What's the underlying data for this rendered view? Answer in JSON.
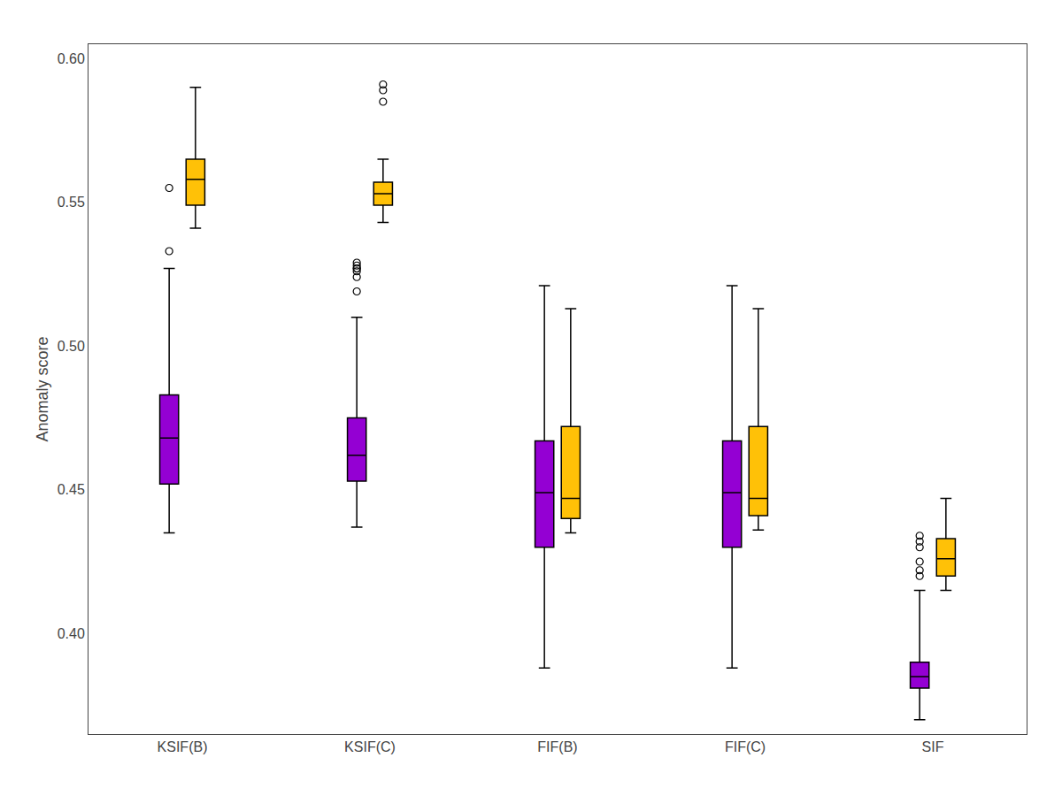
{
  "chart_data": {
    "type": "box",
    "ylabel": "Anomaly score",
    "categories": [
      "KSIF(B)",
      "KSIF(C)",
      "FIF(B)",
      "FIF(C)",
      "SIF"
    ],
    "ylim": [
      0.365,
      0.605
    ],
    "yticks": [
      {
        "value": 0.4,
        "label": "0.40"
      },
      0.45,
      {
        "value": 0.5,
        "label": "0.50"
      },
      0.55,
      {
        "value": 0.6,
        "label": "0.60"
      }
    ],
    "grid": false,
    "series": [
      {
        "color": "#9400D3",
        "values": [
          {
            "whislo": 0.435,
            "q1": 0.452,
            "median": 0.468,
            "q3": 0.483,
            "whishi": 0.527,
            "fliers": [
              0.533,
              0.555
            ]
          },
          {
            "whislo": 0.437,
            "q1": 0.453,
            "median": 0.462,
            "q3": 0.475,
            "whishi": 0.51,
            "fliers": [
              0.519,
              0.524,
              0.526,
              0.527,
              0.527,
              0.528,
              0.529
            ]
          },
          {
            "whislo": 0.388,
            "q1": 0.43,
            "median": 0.449,
            "q3": 0.467,
            "whishi": 0.521,
            "fliers": []
          },
          {
            "whislo": 0.388,
            "q1": 0.43,
            "median": 0.449,
            "q3": 0.467,
            "whishi": 0.521,
            "fliers": []
          },
          {
            "whislo": 0.37,
            "q1": 0.381,
            "median": 0.385,
            "q3": 0.39,
            "whishi": 0.415,
            "fliers": [
              0.42,
              0.422,
              0.425,
              0.43,
              0.432,
              0.434
            ]
          }
        ]
      },
      {
        "color": "#FFC107",
        "values": [
          {
            "whislo": 0.541,
            "q1": 0.549,
            "median": 0.558,
            "q3": 0.565,
            "whishi": 0.59,
            "fliers": []
          },
          {
            "whislo": 0.543,
            "q1": 0.549,
            "median": 0.553,
            "q3": 0.557,
            "whishi": 0.565,
            "fliers": [
              0.585,
              0.589,
              0.591
            ]
          },
          {
            "whislo": 0.435,
            "q1": 0.44,
            "median": 0.447,
            "q3": 0.472,
            "whishi": 0.513,
            "fliers": []
          },
          {
            "whislo": 0.436,
            "q1": 0.441,
            "median": 0.447,
            "q3": 0.472,
            "whishi": 0.513,
            "fliers": []
          },
          {
            "whislo": 0.415,
            "q1": 0.42,
            "median": 0.426,
            "q3": 0.433,
            "whishi": 0.447,
            "fliers": []
          }
        ]
      }
    ]
  }
}
